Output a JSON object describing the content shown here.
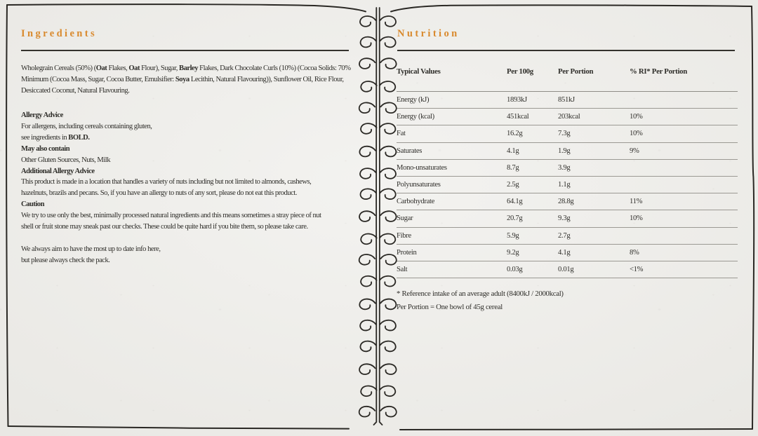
{
  "colors": {
    "accent": "#d98a2e",
    "ink": "#2f2e2a",
    "paper": "#edece8",
    "table_rule": "#9b9993",
    "frame_ink": "#2a2824"
  },
  "page": {
    "left": {
      "title": "Ingredients",
      "ingredients_lines": [
        [
          {
            "t": "Wholegrain Cereals (50%) ("
          },
          {
            "t": "Oat",
            "b": true
          },
          {
            "t": " Flakes, "
          },
          {
            "t": "Oat",
            "b": true
          },
          {
            "t": " Flour), Sugar, "
          },
          {
            "t": "Barley",
            "b": true
          },
          {
            "t": " Flakes, Dark Chocolate Curls (10%) (Cocoa Solids: 70%"
          }
        ],
        [
          {
            "t": "Minimum (Cocoa Mass, Sugar, Cocoa Butter, Emulsifier: "
          },
          {
            "t": "Soya",
            "b": true
          },
          {
            "t": " Lecithin, Natural Flavouring)), Sunflower Oil, Rice Flour,"
          }
        ],
        [
          {
            "t": "Desiccated Coconut, Natural Flavouring."
          }
        ]
      ],
      "allergy_lines": [
        [
          {
            "t": "Allergy Advice",
            "b": true
          }
        ],
        [
          {
            "t": "For allergens, including cereals containing gluten,"
          }
        ],
        [
          {
            "t": "see ingredients in "
          },
          {
            "t": "BOLD.",
            "b": true
          }
        ],
        [
          {
            "t": "May also contain",
            "b": true
          }
        ],
        [
          {
            "t": "Other Gluten Sources, Nuts, Milk"
          }
        ],
        [
          {
            "t": "Additional Allergy Advice",
            "b": true
          }
        ],
        [
          {
            "t": "This product is made in a location that handles a variety of nuts including but not limited to almonds, cashews,"
          }
        ],
        [
          {
            "t": "hazelnuts, brazils and pecans. So, if you have an allergy to nuts of any sort, please do not eat this product."
          }
        ],
        [
          {
            "t": "Caution",
            "b": true
          }
        ],
        [
          {
            "t": "We try to use only the best, minimally processed natural ingredients and this means sometimes a stray piece of nut"
          }
        ],
        [
          {
            "t": "shell or fruit stone may sneak past our checks. These could be quite hard if you bite them, so please take care."
          }
        ]
      ],
      "closing_lines": [
        [
          {
            "t": "We always aim to have the most up to date info here,"
          }
        ],
        [
          {
            "t": "but please always check the pack."
          }
        ]
      ]
    },
    "right": {
      "title": "Nutrition",
      "table": {
        "columns": [
          "Typical Values",
          "Per 100g",
          "Per Portion",
          "% RI* Per Portion"
        ],
        "rows": [
          [
            "Energy (kJ)",
            "1893kJ",
            "851kJ",
            ""
          ],
          [
            "Energy (kcal)",
            "451kcal",
            "203kcal",
            "10%"
          ],
          [
            "Fat",
            "16.2g",
            "7.3g",
            "10%"
          ],
          [
            "Saturates",
            "4.1g",
            "1.9g",
            "9%"
          ],
          [
            "Mono-unsaturates",
            "8.7g",
            "3.9g",
            ""
          ],
          [
            "Polyunsaturates",
            "2.5g",
            "1.1g",
            ""
          ],
          [
            "Carbohydrate",
            "64.1g",
            "28.8g",
            "11%"
          ],
          [
            "Sugar",
            "20.7g",
            "9.3g",
            "10%"
          ],
          [
            "Fibre",
            "5.9g",
            "2.7g",
            ""
          ],
          [
            "Protein",
            "9.2g",
            "4.1g",
            "8%"
          ],
          [
            "Salt",
            "0.03g",
            "0.01g",
            "<1%"
          ]
        ]
      },
      "footnotes": [
        "* Reference intake of an average adult (8400kJ / 2000kcal)",
        "Per Portion = One bowl of 45g cereal"
      ]
    }
  }
}
